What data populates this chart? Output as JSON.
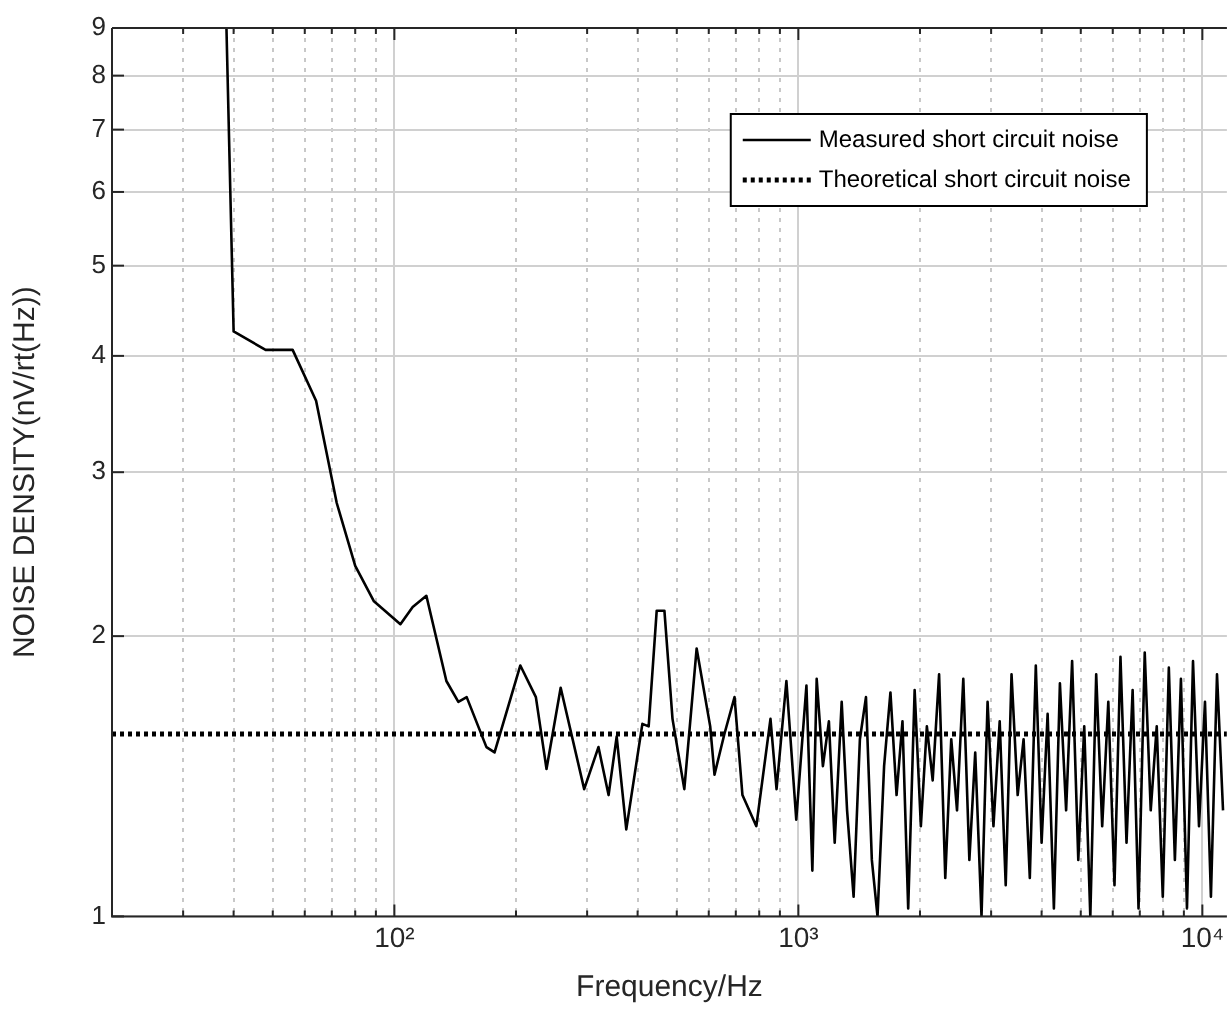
{
  "chart_data": {
    "type": "line",
    "xlabel": "Frequency/Hz",
    "ylabel": "NOISE DENSITY(nV/rt(Hz))",
    "log": "xy",
    "grid": true,
    "legend": "top right",
    "marker": "none",
    "xlim": [
      20,
      11500
    ],
    "ylim": [
      1,
      9
    ],
    "xticks": [
      {
        "value": 20,
        "label": null
      },
      {
        "value": 30,
        "label": null
      },
      {
        "value": 40,
        "label": null
      },
      {
        "value": 50,
        "label": null
      },
      {
        "value": 60,
        "label": null
      },
      {
        "value": 70,
        "label": null
      },
      {
        "value": 80,
        "label": null
      },
      {
        "value": 90,
        "label": null
      },
      {
        "value": 100,
        "label": "10²"
      },
      {
        "value": 200,
        "label": null
      },
      {
        "value": 300,
        "label": null
      },
      {
        "value": 400,
        "label": null
      },
      {
        "value": 500,
        "label": null
      },
      {
        "value": 600,
        "label": null
      },
      {
        "value": 700,
        "label": null
      },
      {
        "value": 800,
        "label": null
      },
      {
        "value": 900,
        "label": null
      },
      {
        "value": 1000,
        "label": "10³"
      },
      {
        "value": 2000,
        "label": null
      },
      {
        "value": 3000,
        "label": null
      },
      {
        "value": 4000,
        "label": null
      },
      {
        "value": 5000,
        "label": null
      },
      {
        "value": 6000,
        "label": null
      },
      {
        "value": 7000,
        "label": null
      },
      {
        "value": 8000,
        "label": null
      },
      {
        "value": 9000,
        "label": null
      },
      {
        "value": 10000,
        "label": "10⁴"
      }
    ],
    "yticks": [
      1,
      2,
      3,
      4,
      5,
      6,
      7,
      8,
      9
    ],
    "series": [
      {
        "name": "Measured short circuit noise",
        "color": "#000000",
        "line_style": "solid",
        "x": [
          38.4,
          40,
          48,
          56,
          64,
          72,
          80,
          89,
          103.5,
          111,
          120,
          134.5,
          144,
          151,
          169,
          177,
          205,
          224,
          238,
          258,
          295,
          320,
          339,
          355,
          375,
          411,
          426,
          446,
          466,
          488,
          522,
          560,
          605,
          620,
          656,
          695,
          727,
          787,
          853,
          883,
          934,
          988,
          1047,
          1083,
          1110,
          1150,
          1190,
          1230,
          1280,
          1320,
          1370,
          1420,
          1470,
          1520,
          1570,
          1630,
          1690,
          1750,
          1810,
          1870,
          1940,
          2010,
          2080,
          2150,
          2230,
          2310,
          2390,
          2470,
          2560,
          2650,
          2740,
          2840,
          2940,
          3040,
          3150,
          3260,
          3370,
          3490,
          3610,
          3740,
          3870,
          4000,
          4140,
          4290,
          4440,
          4600,
          4760,
          4930,
          5100,
          5280,
          5460,
          5650,
          5850,
          6060,
          6270,
          6490,
          6720,
          6950,
          7200,
          7450,
          7710,
          7980,
          8260,
          8550,
          8850,
          9160,
          9480,
          9810,
          10150,
          10500,
          10870,
          11250
        ],
        "values": [
          9,
          4.25,
          4.06,
          4.06,
          3.58,
          2.78,
          2.38,
          2.18,
          2.06,
          2.15,
          2.21,
          1.79,
          1.7,
          1.72,
          1.52,
          1.5,
          1.86,
          1.72,
          1.44,
          1.76,
          1.37,
          1.52,
          1.35,
          1.56,
          1.24,
          1.61,
          1.6,
          2.13,
          2.13,
          1.63,
          1.37,
          1.94,
          1.6,
          1.42,
          1.57,
          1.72,
          1.35,
          1.25,
          1.63,
          1.37,
          1.79,
          1.27,
          1.77,
          1.12,
          1.8,
          1.45,
          1.62,
          1.2,
          1.7,
          1.3,
          1.05,
          1.55,
          1.72,
          1.15,
          1,
          1.45,
          1.74,
          1.35,
          1.62,
          1.02,
          1.75,
          1.25,
          1.6,
          1.4,
          1.82,
          1.1,
          1.55,
          1.3,
          1.8,
          1.15,
          1.5,
          1,
          1.7,
          1.25,
          1.62,
          1.08,
          1.82,
          1.35,
          1.55,
          1.1,
          1.86,
          1.2,
          1.65,
          1.02,
          1.78,
          1.3,
          1.88,
          1.15,
          1.6,
          1,
          1.82,
          1.25,
          1.7,
          1.08,
          1.9,
          1.2,
          1.75,
          1.02,
          1.92,
          1.3,
          1.6,
          1.05,
          1.85,
          1.15,
          1.8,
          1.02,
          1.88,
          1.25,
          1.7,
          1.05,
          1.82,
          1.3
        ]
      },
      {
        "name": "Theoretical short circuit noise",
        "color": "#000000",
        "line_style": "dotted",
        "x": [
          20,
          11500
        ],
        "values": [
          1.57,
          1.57
        ]
      }
    ]
  }
}
